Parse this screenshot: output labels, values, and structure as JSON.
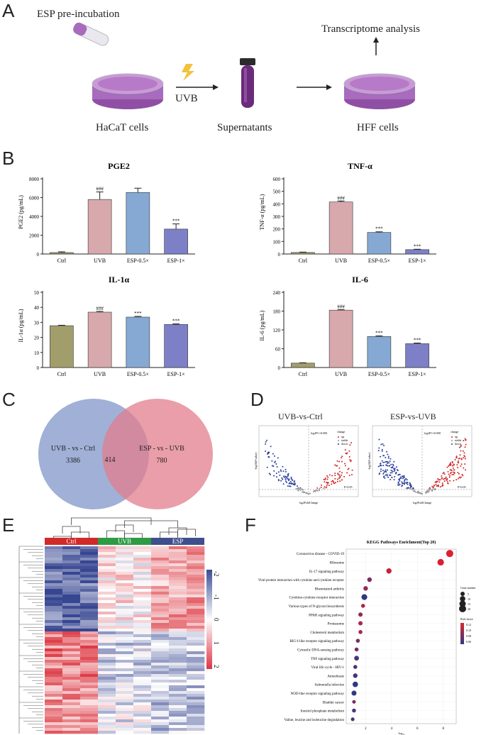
{
  "panel_labels": {
    "a": "A",
    "b": "B",
    "c": "C",
    "d": "D",
    "e": "E",
    "f": "F"
  },
  "panel_a": {
    "pre_incubation": "ESP pre-incubation",
    "uvb": "UVB",
    "hacat": "HaCaT cells",
    "supernatants": "Supernatants",
    "hff": "HFF cells",
    "transcriptome": "Transcriptome analysis",
    "colors": {
      "dish": "#a86bbd",
      "tube": "#6a2b7a",
      "bolt": "#f3c13a"
    }
  },
  "chart_data": [
    {
      "type": "bar",
      "title": "PGE2",
      "ylabel": "PGE2 (pg/mL)",
      "ylim": [
        0,
        8000
      ],
      "yticks": [
        "0",
        "2000",
        "4000",
        "6000",
        "8000"
      ],
      "categories": [
        "Ctrl",
        "UVB",
        "ESP-0.5×",
        "ESP-1×"
      ],
      "values": [
        150,
        5800,
        6550,
        2650
      ],
      "errors": [
        80,
        800,
        450,
        550
      ],
      "marks": [
        "",
        "###",
        "",
        "***"
      ]
    },
    {
      "type": "bar",
      "title": "TNF-α",
      "ylabel": "TNF-α (pg/mL)",
      "ylim": [
        0,
        600
      ],
      "yticks": [
        "0",
        "100",
        "200",
        "300",
        "400",
        "500",
        "600"
      ],
      "categories": [
        "Ctrl",
        "UVB",
        "ESP-0.5×",
        "ESP-1×"
      ],
      "values": [
        12,
        415,
        172,
        35
      ],
      "errors": [
        3,
        8,
        5,
        3
      ],
      "marks": [
        "",
        "###",
        "***",
        "***"
      ]
    },
    {
      "type": "bar",
      "title": "IL-1α",
      "ylabel": "IL-1α (pg/mL)",
      "ylim": [
        0,
        50
      ],
      "yticks": [
        "0",
        "10",
        "20",
        "30",
        "40",
        "50"
      ],
      "categories": [
        "Ctrl",
        "UVB",
        "ESP-0.5×",
        "ESP-1×"
      ],
      "values": [
        27.8,
        36.8,
        33.5,
        28.6
      ],
      "errors": [
        0.3,
        0.5,
        0.5,
        0.4
      ],
      "marks": [
        "",
        "###",
        "***",
        "***"
      ]
    },
    {
      "type": "bar",
      "title": "IL-6",
      "ylabel": "IL-6 (pg/mL)",
      "ylim": [
        0,
        240
      ],
      "yticks": [
        "0",
        "60",
        "120",
        "180",
        "240"
      ],
      "categories": [
        "Ctrl",
        "UVB",
        "ESP-0.5×",
        "ESP-1×"
      ],
      "values": [
        14,
        183,
        99,
        76
      ],
      "errors": [
        1,
        2,
        2,
        2
      ],
      "marks": [
        "",
        "###",
        "***",
        "***"
      ]
    }
  ],
  "bar_colors": [
    "#a19e6b",
    "#d7a8ac",
    "#86a9d4",
    "#7d80c7"
  ],
  "panel_c": {
    "left_label": "UVB - vs - Ctrl",
    "left_count": "3386",
    "overlap": "414",
    "right_label": "ESP - vs - UVB",
    "right_count": "780",
    "colors": {
      "left": "#8fa2cf",
      "right": "#e27e8c"
    }
  },
  "panel_d": {
    "left_title": "UVB-vs-Ctrl",
    "right_title": "ESP-vs-UVB",
    "xlabel": "log2FoldChange",
    "ylabel": "-log10(P value)",
    "fc_label": "log2FC=0.000",
    "p_label": "P=0.05",
    "legend_title": "change",
    "legend": [
      "up",
      "stable",
      "down"
    ]
  },
  "panel_e": {
    "groups": [
      "Ctrl",
      "UVB",
      "ESP"
    ],
    "group_colors": [
      "#d12a2a",
      "#2e9a46",
      "#3f4f8c"
    ],
    "scale_ticks": [
      "-2",
      "-1",
      "0",
      "1",
      "2"
    ]
  },
  "panel_f": {
    "title": "KEGG Pathways Enrichment(Top 20)",
    "xlabel": "-log₁₀",
    "xticks": [
      "2",
      "4",
      "6",
      "8"
    ],
    "size_legend_title": "Gene number",
    "size_legend": [
      "5",
      "10",
      "15",
      "20"
    ],
    "color_legend_title": "Rich factor",
    "color_legend": [
      "0.12",
      "0.10",
      "0.08",
      "0.06"
    ],
    "pathways": [
      {
        "name": "Coronavirus disease - COVID-19",
        "x": 8.5,
        "size": 20,
        "rf": 0.12
      },
      {
        "name": "Ribosome",
        "x": 7.8,
        "size": 16,
        "rf": 0.12
      },
      {
        "name": "IL-17 signaling pathway",
        "x": 3.8,
        "size": 9,
        "rf": 0.11
      },
      {
        "name": "Viral protein interaction with cytokine and cytokine receptor",
        "x": 2.3,
        "size": 6,
        "rf": 0.08
      },
      {
        "name": "Rheumatoid arthritis",
        "x": 2.0,
        "size": 6,
        "rf": 0.09
      },
      {
        "name": "Cytokine-cytokine receptor interaction",
        "x": 1.9,
        "size": 12,
        "rf": 0.05
      },
      {
        "name": "Various types of N-glycan biosynthesis",
        "x": 1.8,
        "size": 4,
        "rf": 0.1
      },
      {
        "name": "PPAR signaling pathway",
        "x": 1.6,
        "size": 5,
        "rf": 0.09
      },
      {
        "name": "Proteasome",
        "x": 1.6,
        "size": 5,
        "rf": 0.1
      },
      {
        "name": "Cholesterol metabolism",
        "x": 1.6,
        "size": 4,
        "rf": 0.1
      },
      {
        "name": "RIG-I-like receptor signaling pathway",
        "x": 1.4,
        "size": 4,
        "rf": 0.08
      },
      {
        "name": "Cytosolic DNA-sensing pathway",
        "x": 1.3,
        "size": 4,
        "rf": 0.08
      },
      {
        "name": "TNF signaling pathway",
        "x": 1.3,
        "size": 7,
        "rf": 0.06
      },
      {
        "name": "Viral life cycle - HIV-1",
        "x": 1.2,
        "size": 4,
        "rf": 0.06
      },
      {
        "name": "Amoebiasis",
        "x": 1.2,
        "size": 6,
        "rf": 0.06
      },
      {
        "name": "Salmonella infection",
        "x": 1.2,
        "size": 10,
        "rf": 0.05
      },
      {
        "name": "NOD-like receptor signaling pathway",
        "x": 1.1,
        "size": 8,
        "rf": 0.05
      },
      {
        "name": "Bladder cancer",
        "x": 1.1,
        "size": 3,
        "rf": 0.08
      },
      {
        "name": "Inositol phosphate metabolism",
        "x": 1.1,
        "size": 4,
        "rf": 0.06
      },
      {
        "name": "Valine, leucine and isoleucine degradation",
        "x": 1.0,
        "size": 3,
        "rf": 0.06
      }
    ]
  }
}
